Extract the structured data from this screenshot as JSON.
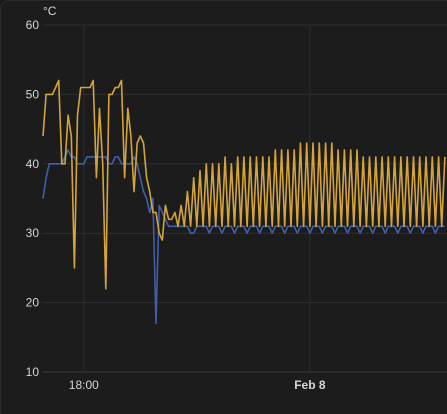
{
  "chart_data": {
    "type": "line",
    "unit_label": "°C",
    "ylim": [
      10,
      60
    ],
    "yticks": [
      10,
      20,
      30,
      40,
      50,
      60
    ],
    "xlim": [
      "Feb 7 16:55",
      "Feb 8 03:40"
    ],
    "xticks": [
      {
        "label": "18:00",
        "t": "Feb 7 18:00",
        "bold": false
      },
      {
        "label": "Feb 8",
        "t": "Feb 8 00:00",
        "bold": true
      }
    ],
    "grid": true,
    "legend": "none",
    "series_colors": [
      "#3f5faa",
      "#d4a43a"
    ],
    "series": [
      {
        "values_start": "Feb 7 16:55",
        "step_minutes": 5,
        "values": [
          35,
          38,
          40,
          40,
          40,
          40,
          40,
          41,
          42,
          41,
          41,
          40,
          40,
          40,
          41,
          41,
          41,
          41,
          41,
          41,
          41,
          40,
          40,
          41,
          41,
          40,
          40,
          40,
          40,
          41,
          40,
          38,
          36,
          35,
          33,
          35,
          17,
          34,
          33,
          32,
          31,
          31,
          31,
          31,
          31,
          31,
          31,
          30,
          30,
          31,
          31,
          31,
          31,
          30,
          31,
          31,
          31,
          30,
          31,
          31,
          31,
          30,
          31,
          31,
          31,
          30,
          31,
          31,
          31,
          30,
          31,
          31,
          31,
          30,
          31,
          31,
          31,
          30,
          31,
          31,
          31,
          30,
          31,
          31,
          31,
          30,
          31,
          31,
          31,
          30,
          31,
          31,
          31,
          30,
          31,
          31,
          31,
          30,
          31,
          31,
          31,
          30,
          31,
          31,
          31,
          30,
          31,
          31,
          31,
          30,
          31,
          31,
          31,
          30,
          31,
          31,
          31,
          30,
          31,
          31,
          31,
          30,
          31,
          31,
          31,
          30,
          31,
          31,
          31
        ]
      },
      {
        "values_start": "Feb 7 16:55",
        "step_minutes": 5,
        "values": [
          44,
          50,
          50,
          50,
          51,
          52,
          40,
          40,
          47,
          44,
          25,
          47,
          51,
          51,
          51,
          51,
          52,
          38,
          48,
          40,
          22,
          50,
          50,
          51,
          51,
          52,
          38,
          48,
          44,
          36,
          43,
          44,
          43,
          38,
          36,
          33,
          33,
          30,
          29,
          34,
          32,
          32,
          33,
          31,
          34,
          31,
          36,
          31,
          38,
          31,
          39,
          31,
          40,
          31,
          40,
          31,
          40,
          31,
          41,
          31,
          40,
          31,
          41,
          31,
          41,
          31,
          41,
          31,
          41,
          31,
          41,
          31,
          41,
          31,
          42,
          31,
          42,
          31,
          42,
          31,
          42,
          31,
          43,
          31,
          43,
          31,
          43,
          31,
          43,
          31,
          43,
          31,
          43,
          31,
          42,
          31,
          42,
          31,
          42,
          31,
          42,
          31,
          41,
          31,
          41,
          31,
          41,
          31,
          41,
          31,
          41,
          31,
          41,
          31,
          41,
          31,
          41,
          31,
          41,
          31,
          41,
          31,
          41,
          31,
          41,
          31,
          41,
          31,
          41
        ]
      }
    ]
  }
}
